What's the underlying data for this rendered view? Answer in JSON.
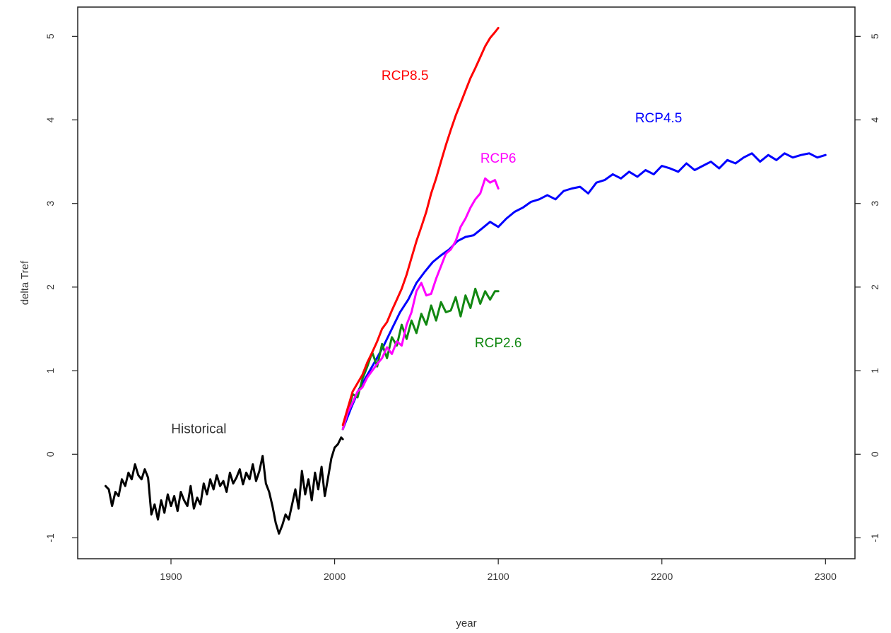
{
  "chart_data": {
    "type": "line",
    "xlabel": "year",
    "ylabel": "delta Tref",
    "xlim": [
      1843,
      2318
    ],
    "ylim": [
      -1.25,
      5.35
    ],
    "xticks": [
      1900,
      2000,
      2100,
      2200,
      2300
    ],
    "xtick_labels": [
      "1900",
      "2000",
      "2100",
      "2200",
      "2300"
    ],
    "yticks": [
      -1,
      0,
      1,
      2,
      3,
      4,
      5
    ],
    "ytick_labels": [
      "-1",
      "0",
      "1",
      "2",
      "3",
      "4",
      "5"
    ],
    "grid": false,
    "legend": "none",
    "series": [
      {
        "name": "Historical",
        "color": "#000000",
        "x": [
          1860,
          1862,
          1864,
          1866,
          1868,
          1870,
          1872,
          1874,
          1876,
          1878,
          1880,
          1882,
          1884,
          1886,
          1888,
          1890,
          1892,
          1894,
          1896,
          1898,
          1900,
          1902,
          1904,
          1906,
          1908,
          1910,
          1912,
          1914,
          1916,
          1918,
          1920,
          1922,
          1924,
          1926,
          1928,
          1930,
          1932,
          1934,
          1936,
          1938,
          1940,
          1942,
          1944,
          1946,
          1948,
          1950,
          1952,
          1954,
          1956,
          1958,
          1960,
          1962,
          1964,
          1966,
          1968,
          1970,
          1972,
          1974,
          1976,
          1978,
          1980,
          1982,
          1984,
          1986,
          1988,
          1990,
          1992,
          1994,
          1996,
          1998,
          2000,
          2002,
          2004,
          2005
        ],
        "values": [
          -0.38,
          -0.42,
          -0.62,
          -0.45,
          -0.5,
          -0.3,
          -0.38,
          -0.22,
          -0.3,
          -0.12,
          -0.25,
          -0.3,
          -0.18,
          -0.28,
          -0.72,
          -0.6,
          -0.78,
          -0.55,
          -0.7,
          -0.48,
          -0.62,
          -0.5,
          -0.68,
          -0.45,
          -0.55,
          -0.62,
          -0.38,
          -0.65,
          -0.52,
          -0.6,
          -0.35,
          -0.48,
          -0.3,
          -0.42,
          -0.25,
          -0.38,
          -0.32,
          -0.45,
          -0.22,
          -0.35,
          -0.28,
          -0.18,
          -0.36,
          -0.22,
          -0.3,
          -0.12,
          -0.32,
          -0.2,
          -0.02,
          -0.35,
          -0.45,
          -0.62,
          -0.82,
          -0.95,
          -0.85,
          -0.72,
          -0.78,
          -0.6,
          -0.42,
          -0.65,
          -0.2,
          -0.48,
          -0.3,
          -0.55,
          -0.22,
          -0.42,
          -0.15,
          -0.5,
          -0.28,
          -0.05,
          0.08,
          0.12,
          0.2,
          0.18
        ]
      },
      {
        "name": "RCP2.6",
        "color": "#128812",
        "x": [
          2005,
          2008,
          2011,
          2014,
          2017,
          2020,
          2023,
          2026,
          2029,
          2032,
          2035,
          2038,
          2041,
          2044,
          2047,
          2050,
          2053,
          2056,
          2059,
          2062,
          2065,
          2068,
          2071,
          2074,
          2077,
          2080,
          2083,
          2086,
          2089,
          2092,
          2095,
          2098,
          2100
        ],
        "values": [
          0.3,
          0.5,
          0.72,
          0.68,
          0.9,
          1.05,
          1.22,
          1.05,
          1.32,
          1.15,
          1.4,
          1.3,
          1.55,
          1.38,
          1.6,
          1.45,
          1.68,
          1.55,
          1.78,
          1.6,
          1.82,
          1.7,
          1.72,
          1.88,
          1.65,
          1.9,
          1.75,
          1.98,
          1.8,
          1.95,
          1.85,
          1.95,
          1.95
        ]
      },
      {
        "name": "RCP4.5",
        "color": "#0000ff",
        "x": [
          2005,
          2010,
          2015,
          2020,
          2025,
          2030,
          2035,
          2040,
          2045,
          2050,
          2055,
          2060,
          2065,
          2070,
          2075,
          2080,
          2085,
          2090,
          2095,
          2100,
          2105,
          2110,
          2115,
          2120,
          2125,
          2130,
          2135,
          2140,
          2145,
          2150,
          2155,
          2160,
          2165,
          2170,
          2175,
          2180,
          2185,
          2190,
          2195,
          2200,
          2205,
          2210,
          2215,
          2220,
          2225,
          2230,
          2235,
          2240,
          2245,
          2250,
          2255,
          2260,
          2265,
          2270,
          2275,
          2280,
          2285,
          2290,
          2295,
          2300
        ],
        "values": [
          0.3,
          0.55,
          0.78,
          0.95,
          1.12,
          1.3,
          1.5,
          1.7,
          1.85,
          2.05,
          2.18,
          2.3,
          2.38,
          2.45,
          2.55,
          2.6,
          2.62,
          2.7,
          2.78,
          2.72,
          2.82,
          2.9,
          2.95,
          3.02,
          3.05,
          3.1,
          3.05,
          3.15,
          3.18,
          3.2,
          3.12,
          3.25,
          3.28,
          3.35,
          3.3,
          3.38,
          3.32,
          3.4,
          3.35,
          3.45,
          3.42,
          3.38,
          3.48,
          3.4,
          3.45,
          3.5,
          3.42,
          3.52,
          3.48,
          3.55,
          3.6,
          3.5,
          3.58,
          3.52,
          3.6,
          3.55,
          3.58,
          3.6,
          3.55,
          3.58
        ]
      },
      {
        "name": "RCP6",
        "color": "#ff00ff",
        "x": [
          2005,
          2008,
          2011,
          2014,
          2017,
          2020,
          2023,
          2026,
          2029,
          2032,
          2035,
          2038,
          2041,
          2044,
          2047,
          2050,
          2053,
          2056,
          2059,
          2062,
          2065,
          2068,
          2071,
          2074,
          2077,
          2080,
          2083,
          2086,
          2089,
          2092,
          2095,
          2098,
          2100
        ],
        "values": [
          0.3,
          0.5,
          0.62,
          0.75,
          0.8,
          0.92,
          1.0,
          1.08,
          1.15,
          1.28,
          1.2,
          1.35,
          1.3,
          1.55,
          1.7,
          1.95,
          2.05,
          1.9,
          1.92,
          2.1,
          2.25,
          2.4,
          2.45,
          2.55,
          2.72,
          2.82,
          2.95,
          3.05,
          3.12,
          3.3,
          3.25,
          3.28,
          3.18
        ]
      },
      {
        "name": "RCP8.5",
        "color": "#ff0000",
        "x": [
          2005,
          2008,
          2011,
          2014,
          2017,
          2020,
          2023,
          2026,
          2029,
          2032,
          2035,
          2038,
          2041,
          2044,
          2047,
          2050,
          2053,
          2056,
          2059,
          2062,
          2065,
          2068,
          2071,
          2074,
          2077,
          2080,
          2083,
          2086,
          2089,
          2092,
          2095,
          2098,
          2100
        ],
        "values": [
          0.35,
          0.55,
          0.75,
          0.85,
          0.95,
          1.1,
          1.22,
          1.35,
          1.5,
          1.58,
          1.72,
          1.85,
          1.98,
          2.15,
          2.35,
          2.55,
          2.72,
          2.9,
          3.12,
          3.3,
          3.5,
          3.7,
          3.88,
          4.05,
          4.2,
          4.35,
          4.5,
          4.62,
          4.75,
          4.88,
          4.98,
          5.05,
          5.1
        ]
      }
    ],
    "annotations": [
      {
        "text": "Historical",
        "x": 1917,
        "y": 0.25,
        "color": "#333333"
      },
      {
        "text": "RCP8.5",
        "x": 2043,
        "y": 4.48,
        "color": "#ff0000"
      },
      {
        "text": "RCP4.5",
        "x": 2198,
        "y": 3.97,
        "color": "#0000ff"
      },
      {
        "text": "RCP6",
        "x": 2100,
        "y": 3.49,
        "color": "#ff00ff"
      },
      {
        "text": "RCP2.6",
        "x": 2100,
        "y": 1.28,
        "color": "#128812"
      }
    ]
  }
}
